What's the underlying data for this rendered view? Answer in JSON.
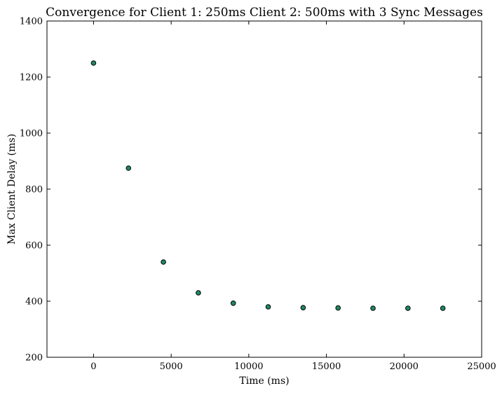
{
  "chart_data": {
    "type": "scatter",
    "title": "Convergence for Client 1: 250ms Client 2: 500ms with 3 Sync Messages",
    "xlabel": "Time (ms)",
    "ylabel": "Max Client Delay (ms)",
    "xlim": [
      -3000,
      25000
    ],
    "ylim": [
      200,
      1400
    ],
    "xticks": [
      0,
      5000,
      10000,
      15000,
      20000,
      25000
    ],
    "yticks": [
      200,
      400,
      600,
      800,
      1000,
      1200,
      1400
    ],
    "grid": false,
    "marker_color": "#1f8a5f",
    "marker_edge_color": "#000000",
    "points": [
      {
        "x": 0,
        "y": 1250
      },
      {
        "x": 2250,
        "y": 875
      },
      {
        "x": 4500,
        "y": 540
      },
      {
        "x": 6750,
        "y": 430
      },
      {
        "x": 9000,
        "y": 393
      },
      {
        "x": 11250,
        "y": 380
      },
      {
        "x": 13500,
        "y": 377
      },
      {
        "x": 15750,
        "y": 376
      },
      {
        "x": 18000,
        "y": 375
      },
      {
        "x": 20250,
        "y": 375
      },
      {
        "x": 22500,
        "y": 375
      }
    ]
  }
}
